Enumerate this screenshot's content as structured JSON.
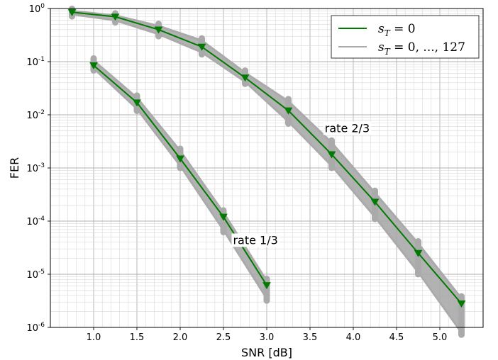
{
  "chart_data": {
    "type": "line",
    "xlabel": "SNR [dB]",
    "ylabel": "FER",
    "xlim": [
      0.5,
      5.5
    ],
    "ylim": [
      1e-06,
      1
    ],
    "yscale": "log",
    "grid": true,
    "x_ticks": [
      "1.0",
      "1.5",
      "2.0",
      "2.5",
      "3.0",
      "3.5",
      "4.0",
      "4.5",
      "5.0"
    ],
    "y_ticks": [
      {
        "base": "10",
        "exp": "0"
      },
      {
        "base": "10",
        "exp": "-1"
      },
      {
        "base": "10",
        "exp": "-2"
      },
      {
        "base": "10",
        "exp": "-3"
      },
      {
        "base": "10",
        "exp": "-4"
      },
      {
        "base": "10",
        "exp": "-5"
      },
      {
        "base": "10",
        "exp": "-6"
      }
    ],
    "legend": {
      "placement": "top-right",
      "entries": [
        {
          "label_main": "s",
          "label_sub": "T",
          "label_rest": " = 0",
          "color": "#007a00"
        },
        {
          "label_main": "s",
          "label_sub": "T",
          "label_rest": " = 0, ..., 127",
          "color": "#aaaaaa"
        }
      ]
    },
    "annotations": [
      {
        "text": "rate 2/3",
        "x": 3.93,
        "y": 0.0055
      },
      {
        "text": "rate 1/3",
        "x": 2.87,
        "y": 4.3e-05
      }
    ],
    "series": [
      {
        "name": "s_T = 0",
        "group": "rate 1/3",
        "color": "#007a00",
        "marker": "triangle-down",
        "x": [
          1.0,
          1.5,
          2.0,
          2.5,
          3.0
        ],
        "y": [
          0.085,
          0.017,
          0.0015,
          0.00012,
          6.2e-06
        ]
      },
      {
        "name": "s_T = 0",
        "group": "rate 2/3",
        "color": "#007a00",
        "marker": "triangle-down",
        "x": [
          0.75,
          1.25,
          1.75,
          2.25,
          2.75,
          3.25,
          3.75,
          4.25,
          4.75,
          5.25
        ],
        "y": [
          0.85,
          0.7,
          0.4,
          0.19,
          0.05,
          0.012,
          0.0018,
          0.00023,
          2.5e-05,
          2.8e-06
        ]
      },
      {
        "name": "s_T = 0, ..., 127",
        "group": "rate 1/3",
        "color": "#aaaaaa",
        "band": true,
        "x": [
          1.0,
          1.5,
          2.0,
          2.5,
          3.0
        ],
        "y_min": [
          0.075,
          0.013,
          0.0011,
          6.8e-05,
          3.5e-06
        ],
        "y_max": [
          0.105,
          0.021,
          0.0021,
          0.000145,
          7.5e-06
        ]
      },
      {
        "name": "s_T = 0, ..., 127",
        "group": "rate 2/3",
        "color": "#aaaaaa",
        "band": true,
        "x": [
          0.75,
          1.25,
          1.75,
          2.25,
          2.75,
          3.25,
          3.75,
          4.25,
          4.75,
          5.25
        ],
        "y_min": [
          0.78,
          0.6,
          0.33,
          0.15,
          0.042,
          0.0075,
          0.0011,
          0.00012,
          1.1e-05,
          8e-07
        ],
        "y_max": [
          0.9,
          0.74,
          0.47,
          0.25,
          0.062,
          0.018,
          0.003,
          0.00034,
          3.8e-05,
          3.5e-06
        ]
      }
    ]
  }
}
